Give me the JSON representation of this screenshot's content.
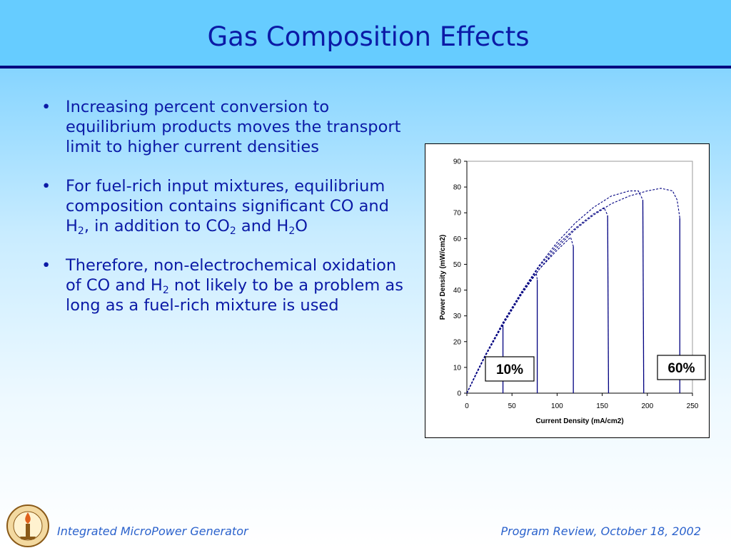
{
  "slide": {
    "title": "Gas Composition Effects",
    "bullets": [
      {
        "parts": [
          {
            "t": "Increasing percent conversion to equilibrium products moves the transport limit to higher current densities"
          }
        ]
      },
      {
        "parts": [
          {
            "t": "For fuel-rich input mixtures, equilibrium composition contains significant CO and H"
          },
          {
            "sub": "2"
          },
          {
            "t": ", in addition to CO"
          },
          {
            "sub": "2"
          },
          {
            "t": " and H"
          },
          {
            "sub": "2"
          },
          {
            "t": "O"
          }
        ]
      },
      {
        "parts": [
          {
            "t": "Therefore, non-electrochemical oxidation of CO and H"
          },
          {
            "sub": "2"
          },
          {
            "t": " not likely to be a problem as long as a fuel-rich mixture is used"
          }
        ]
      }
    ],
    "bullet_symbol": "•"
  },
  "footer": {
    "left": "Integrated MicroPower Generator",
    "right": "Program Review, October 18, 2002",
    "logo_icon": "caltech-seal-icon"
  },
  "colors": {
    "title_text": "#0b1aa6",
    "series_line": "#000080",
    "footer_text": "#2b62cc",
    "title_band": "#66ccff"
  },
  "chart_data": {
    "type": "line",
    "xlabel": "Current Density (mA/cm2)",
    "ylabel": "Power Density (mW/cm2)",
    "xlim": [
      0,
      250
    ],
    "ylim": [
      0,
      90
    ],
    "xticks": [
      0,
      50,
      100,
      150,
      200,
      250
    ],
    "yticks": [
      0,
      10,
      20,
      30,
      40,
      50,
      60,
      70,
      80,
      90
    ],
    "grid": false,
    "annotations": [
      {
        "text": "10%",
        "at_series": 1
      },
      {
        "text": "60%",
        "at_series": 6
      }
    ],
    "series": [
      {
        "limit_x": 40,
        "points": [
          [
            0,
            0
          ],
          [
            10,
            7.5
          ],
          [
            20,
            14.5
          ],
          [
            30,
            21
          ],
          [
            40,
            26.5
          ],
          [
            40,
            0
          ]
        ]
      },
      {
        "limit_x": 78,
        "points": [
          [
            0,
            0
          ],
          [
            10,
            7.5
          ],
          [
            20,
            14.5
          ],
          [
            30,
            21
          ],
          [
            40,
            27
          ],
          [
            50,
            33
          ],
          [
            60,
            38.5
          ],
          [
            70,
            43.5
          ],
          [
            77,
            46.5
          ],
          [
            78,
            44
          ],
          [
            78,
            0
          ]
        ]
      },
      {
        "limit_x": 118,
        "points": [
          [
            0,
            0
          ],
          [
            20,
            14.5
          ],
          [
            40,
            27
          ],
          [
            60,
            38.5
          ],
          [
            80,
            48
          ],
          [
            100,
            55.5
          ],
          [
            115,
            60.5
          ],
          [
            118,
            57
          ],
          [
            118,
            0
          ]
        ]
      },
      {
        "limit_x": 157,
        "points": [
          [
            0,
            0
          ],
          [
            20,
            14.5
          ],
          [
            40,
            27
          ],
          [
            60,
            38.5
          ],
          [
            80,
            49
          ],
          [
            100,
            57.5
          ],
          [
            120,
            64
          ],
          [
            140,
            69.5
          ],
          [
            152,
            72
          ],
          [
            156,
            69
          ],
          [
            157,
            0
          ]
        ]
      },
      {
        "limit_x": 196,
        "points": [
          [
            0,
            0
          ],
          [
            20,
            14.5
          ],
          [
            40,
            27.5
          ],
          [
            60,
            39
          ],
          [
            80,
            49.5
          ],
          [
            100,
            58.5
          ],
          [
            120,
            66
          ],
          [
            140,
            72
          ],
          [
            160,
            76.5
          ],
          [
            180,
            78.5
          ],
          [
            190,
            78.5
          ],
          [
            195,
            75
          ],
          [
            196,
            0
          ]
        ]
      },
      {
        "limit_x": 236,
        "points": [
          [
            0,
            0
          ],
          [
            20,
            14
          ],
          [
            40,
            26.5
          ],
          [
            60,
            38
          ],
          [
            80,
            48
          ],
          [
            100,
            56.5
          ],
          [
            120,
            63.5
          ],
          [
            140,
            69
          ],
          [
            160,
            73.5
          ],
          [
            180,
            76.5
          ],
          [
            200,
            78.5
          ],
          [
            215,
            79.5
          ],
          [
            228,
            78.5
          ],
          [
            233,
            75
          ],
          [
            236,
            68
          ],
          [
            236,
            0
          ]
        ]
      }
    ]
  }
}
